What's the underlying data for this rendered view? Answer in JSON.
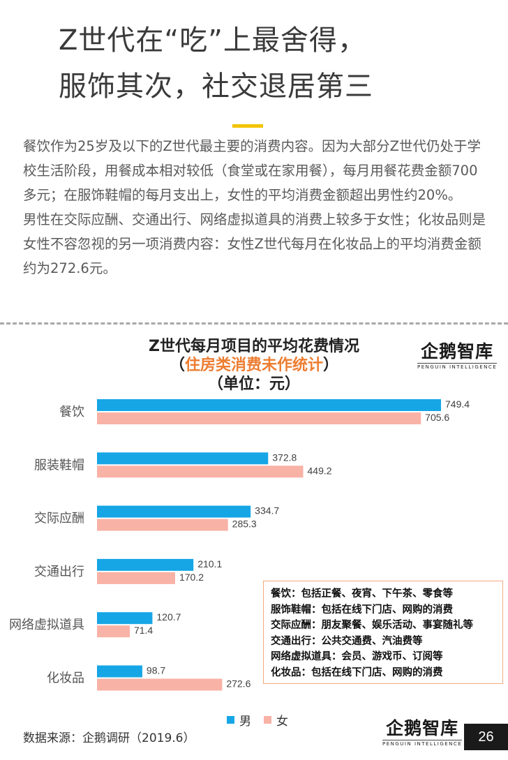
{
  "headline": {
    "line1": "Z世代在“吃”上最舍得，",
    "line2": "服饰其次，社交退居第三"
  },
  "intro": {
    "para1": "餐饮作为25岁及以下的Z世代最主要的消费内容。因为大部分Z世代仍处于学校生活阶段，用餐成本相对较低（食堂或在家用餐），每月用餐花费金额700多元；在服饰鞋帽的每月支出上，女性的平均消费金额超出男性约20%。",
    "para2": "男性在交际应酬、交通出行、网络虚拟道具的消费上较多于女性；化妆品则是女性不容忽视的另一项消费内容：女性Z世代每月在化妆品上的平均消费金额约为272.6元。"
  },
  "logo": {
    "text": "企鹅智库",
    "sub": "PENGUIN INTELLIGENCE"
  },
  "colors": {
    "male": "#16a6e6",
    "female": "#f9b2a6",
    "accent": "#f2c400",
    "subtitle": "#ed7d31"
  },
  "chart_data": {
    "type": "bar",
    "orientation": "horizontal",
    "title": "Z世代每月项目的平均花费情况",
    "subtitle_open": "（",
    "subtitle_text": "住房类消费未作统计",
    "subtitle_close": "）",
    "unit": "（单位：元）",
    "categories": [
      "餐饮",
      "服装鞋帽",
      "交际应酬",
      "交通出行",
      "网络虚拟道具",
      "化妆品"
    ],
    "series": [
      {
        "name": "男",
        "color": "#16a6e6",
        "values": [
          749.4,
          372.8,
          334.7,
          210.1,
          120.7,
          98.7
        ]
      },
      {
        "name": "女",
        "color": "#f9b2a6",
        "values": [
          705.6,
          449.2,
          285.3,
          170.2,
          71.4,
          272.6
        ]
      }
    ],
    "xlim": [
      0,
      900
    ],
    "legend_position": "bottom",
    "grid": false
  },
  "notes": [
    "餐饮：包括正餐、夜宵、下午茶、零食等",
    "服饰鞋帽：包括在线下门店、网购的消费",
    "交际应酬：朋友聚餐、娱乐活动、事宴随礼等",
    "交通出行：公共交通费、汽油费等",
    "网络虚拟道具：会员、游戏币、订阅等",
    "化妆品：包括在线下门店、网购的消费"
  ],
  "footer": {
    "source": "数据来源：企鹅调研（2019.6）",
    "page": "26"
  }
}
